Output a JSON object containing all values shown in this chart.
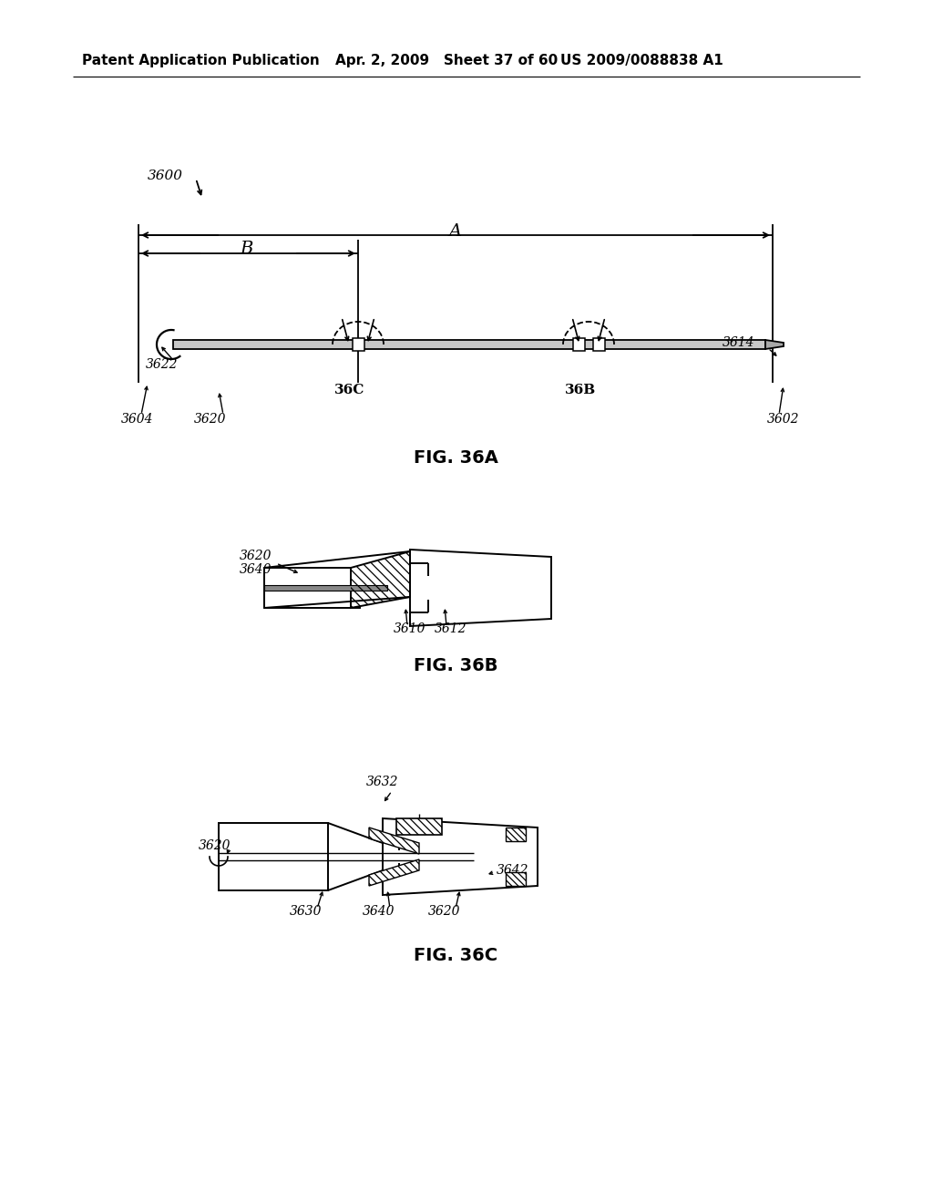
{
  "bg_color": "#ffffff",
  "header_left": "Patent Application Publication",
  "header_mid": "Apr. 2, 2009   Sheet 37 of 60",
  "header_right": "US 2009/0088838 A1",
  "fig36a_caption": "FIG. 36A",
  "fig36b_caption": "FIG. 36B",
  "fig36c_caption": "FIG. 36C"
}
